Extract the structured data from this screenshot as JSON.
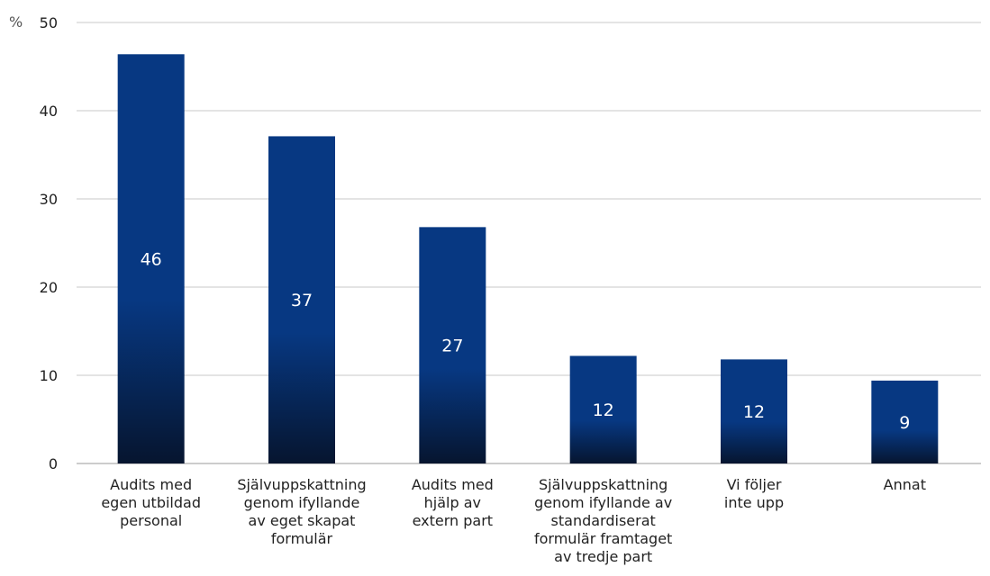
{
  "chart_data": {
    "type": "bar",
    "ylabel": "%",
    "ylim": [
      0,
      50
    ],
    "yticks": [
      0,
      10,
      20,
      30,
      40,
      50
    ],
    "grid": true,
    "legend": "none",
    "categories": [
      [
        "Audits med",
        "egen utbildad",
        "personal"
      ],
      [
        "Självuppskattning",
        "genom ifyllande",
        "av eget skapat",
        "formulär"
      ],
      [
        "Audits med",
        "hjälp av",
        "extern part"
      ],
      [
        "Självuppskattning",
        "genom ifyllande av",
        "standardiserat",
        "formulär framtaget",
        "av tredje part"
      ],
      [
        "Vi följer",
        "inte upp"
      ],
      [
        "Annat"
      ]
    ],
    "values": [
      46.4,
      37.1,
      26.8,
      12.2,
      11.8,
      9.4
    ],
    "data_labels": [
      "46",
      "37",
      "27",
      "12",
      "12",
      "9"
    ],
    "colors": {
      "bar_top": "#073882",
      "bar_bottom": "#06152f"
    }
  }
}
